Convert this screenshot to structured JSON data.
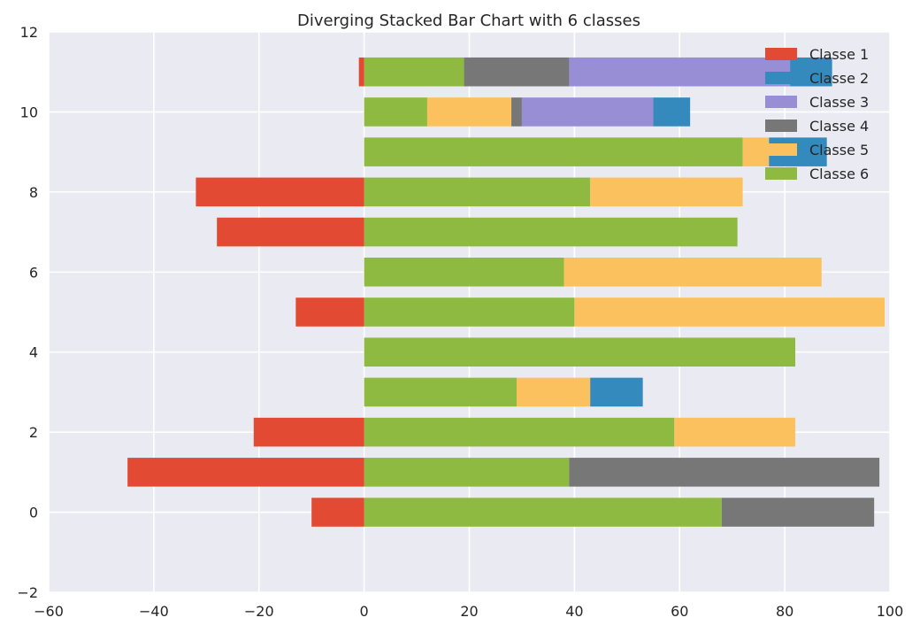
{
  "chart_data": {
    "type": "bar",
    "orientation": "horizontal",
    "stacking": "diverging",
    "title": "Diverging Stacked Bar Chart with 6 classes",
    "xlabel": "",
    "ylabel": "",
    "xlim": [
      -60,
      100
    ],
    "ylim": [
      -2,
      12
    ],
    "xticks": [
      -60,
      -40,
      -20,
      0,
      20,
      40,
      60,
      80,
      100
    ],
    "yticks": [
      -2,
      0,
      2,
      4,
      6,
      8,
      10,
      12
    ],
    "grid": true,
    "background": "#eaeaf2",
    "legend_position": "top-right",
    "categories": [
      0,
      1,
      2,
      3,
      4,
      5,
      6,
      7,
      8,
      9,
      10,
      11
    ],
    "series": [
      {
        "name": "Classe 1",
        "color": "#e24a33",
        "values": [
          -10,
          -45,
          -21,
          0,
          0,
          -13,
          0,
          -28,
          -32,
          0,
          0,
          -1
        ]
      },
      {
        "name": "Classe 2",
        "color": "#348abd",
        "values": [
          0,
          0,
          0,
          10,
          0,
          0,
          0,
          0,
          0,
          11,
          7,
          8
        ]
      },
      {
        "name": "Classe 3",
        "color": "#988ed5",
        "values": [
          0,
          0,
          0,
          0,
          0,
          0,
          0,
          0,
          0,
          0,
          25,
          42
        ]
      },
      {
        "name": "Classe 4",
        "color": "#777777",
        "values": [
          29,
          59,
          0,
          0,
          0,
          0,
          0,
          0,
          0,
          0,
          2,
          20
        ]
      },
      {
        "name": "Classe 5",
        "color": "#fbc15e",
        "values": [
          0,
          0,
          23,
          14,
          0,
          59,
          49,
          0,
          29,
          5,
          16,
          0
        ]
      },
      {
        "name": "Classe 6",
        "color": "#8eba42",
        "values": [
          68,
          39,
          59,
          29,
          82,
          40,
          38,
          71,
          43,
          72,
          12,
          19
        ]
      }
    ],
    "stack_order_positive": [
      "Classe 6",
      "Classe 5",
      "Classe 4",
      "Classe 3",
      "Classe 2"
    ],
    "stack_order_negative": [
      "Classe 1"
    ]
  }
}
